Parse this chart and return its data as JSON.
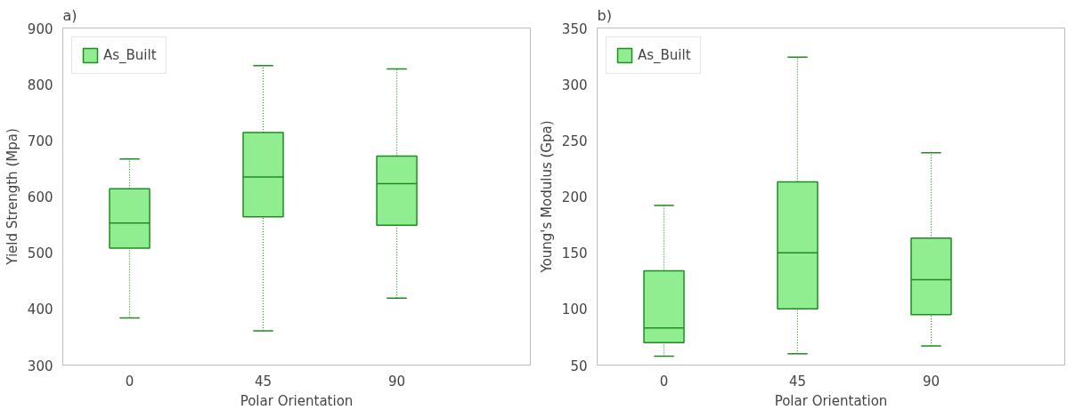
{
  "chart_data": [
    {
      "type": "box",
      "title": "a)",
      "xlabel": "Polar Orientation",
      "ylabel": "Yield Strength (Mpa)",
      "categories": [
        "0",
        "45",
        "90"
      ],
      "ylim": [
        300,
        900
      ],
      "yticks": [
        300,
        400,
        500,
        600,
        700,
        800,
        900
      ],
      "grid": false,
      "legend": "top left",
      "line_style": "dotted",
      "series": [
        {
          "name": "As_Built",
          "color": "#90ee90",
          "boxes": [
            {
              "low": 384,
              "q1": 508,
              "median": 553,
              "q3": 614,
              "high": 667
            },
            {
              "low": 361,
              "q1": 564,
              "median": 635,
              "q3": 714,
              "high": 833
            },
            {
              "low": 419,
              "q1": 549,
              "median": 623,
              "q3": 672,
              "high": 827
            }
          ]
        }
      ]
    },
    {
      "type": "box",
      "title": "b)",
      "xlabel": "Polar Orientation",
      "ylabel": "Young's Modulus (Gpa)",
      "categories": [
        "0",
        "45",
        "90"
      ],
      "ylim": [
        50,
        350
      ],
      "yticks": [
        50,
        100,
        150,
        200,
        250,
        300,
        350
      ],
      "grid": false,
      "legend": "top left",
      "line_style": "dotted",
      "series": [
        {
          "name": "As_Built",
          "color": "#90ee90",
          "boxes": [
            {
              "low": 58,
              "q1": 70,
              "median": 83,
              "q3": 134,
              "high": 192
            },
            {
              "low": 60,
              "q1": 100,
              "median": 150,
              "q3": 213,
              "high": 324
            },
            {
              "low": 67,
              "q1": 95,
              "median": 126,
              "q3": 163,
              "high": 239
            }
          ]
        }
      ]
    }
  ]
}
